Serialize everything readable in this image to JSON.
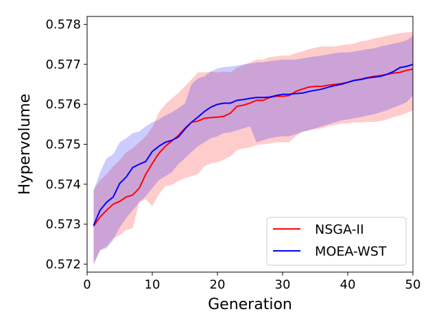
{
  "chart_data": {
    "type": "line",
    "title": "",
    "xlabel": "Generation",
    "ylabel": "Hypervolume",
    "xlim": [
      0,
      50
    ],
    "ylim": [
      0.5718,
      0.5782
    ],
    "xticks": [
      0,
      10,
      20,
      30,
      40,
      50
    ],
    "yticks": [
      0.572,
      0.573,
      0.574,
      0.575,
      0.576,
      0.577,
      0.578
    ],
    "ytick_labels": [
      "0.572",
      "0.573",
      "0.574",
      "0.575",
      "0.576",
      "0.577",
      "0.578"
    ],
    "legend_position": "lower-right",
    "x": [
      1,
      2,
      3,
      4,
      5,
      6,
      7,
      8,
      9,
      10,
      11,
      12,
      13,
      14,
      15,
      16,
      17,
      18,
      19,
      20,
      21,
      22,
      23,
      24,
      25,
      26,
      27,
      28,
      29,
      30,
      31,
      32,
      33,
      34,
      35,
      36,
      37,
      38,
      39,
      40,
      41,
      42,
      43,
      44,
      45,
      46,
      47,
      48,
      49,
      50
    ],
    "series": [
      {
        "name": "NSGA-II",
        "color": "#ff0000",
        "fill_color": "#ff0000",
        "fill_opacity": 0.2,
        "mean": [
          0.57295,
          0.57318,
          0.57335,
          0.5735,
          0.57357,
          0.57368,
          0.57373,
          0.5739,
          0.57425,
          0.57452,
          0.57477,
          0.57495,
          0.57508,
          0.57522,
          0.5754,
          0.57555,
          0.57558,
          0.57565,
          0.57567,
          0.57568,
          0.5757,
          0.57578,
          0.57595,
          0.57598,
          0.57603,
          0.5761,
          0.5761,
          0.57617,
          0.5762,
          0.5762,
          0.57622,
          0.57632,
          0.57638,
          0.57643,
          0.57645,
          0.57645,
          0.57648,
          0.5765,
          0.57652,
          0.57655,
          0.5766,
          0.57663,
          0.57667,
          0.5767,
          0.57672,
          0.57675,
          0.57678,
          0.5768,
          0.57685,
          0.57688
        ],
        "lower": [
          0.572,
          0.57235,
          0.57245,
          0.57265,
          0.57272,
          0.57285,
          0.5729,
          0.57355,
          0.57362,
          0.57345,
          0.57375,
          0.57395,
          0.57398,
          0.57408,
          0.57415,
          0.5742,
          0.57425,
          0.57445,
          0.57452,
          0.57455,
          0.57462,
          0.5747,
          0.57485,
          0.5749,
          0.57492,
          0.57498,
          0.575,
          0.57502,
          0.57505,
          0.57505,
          0.57505,
          0.5752,
          0.5753,
          0.57535,
          0.57538,
          0.5754,
          0.57545,
          0.57548,
          0.57552,
          0.57552,
          0.57555,
          0.57555,
          0.57556,
          0.57556,
          0.57558,
          0.57562,
          0.57568,
          0.57572,
          0.57578,
          0.57585
        ],
        "upper": [
          0.57385,
          0.5741,
          0.57425,
          0.57445,
          0.5746,
          0.5748,
          0.5749,
          0.57505,
          0.5752,
          0.57542,
          0.5758,
          0.576,
          0.57615,
          0.57628,
          0.57645,
          0.57662,
          0.5768,
          0.5768,
          0.57682,
          0.5768,
          0.57682,
          0.5768,
          0.57692,
          0.57698,
          0.57705,
          0.57712,
          0.57712,
          0.57718,
          0.5772,
          0.57722,
          0.57722,
          0.57728,
          0.57732,
          0.57738,
          0.57742,
          0.57745,
          0.57745,
          0.57745,
          0.57748,
          0.5775,
          0.57752,
          0.57758,
          0.5776,
          0.57765,
          0.57768,
          0.57772,
          0.57775,
          0.57778,
          0.5778,
          0.57782
        ]
      },
      {
        "name": "MOEA-WST",
        "color": "#0000ff",
        "fill_color": "#0000ff",
        "fill_opacity": 0.2,
        "mean": [
          0.57297,
          0.57335,
          0.57355,
          0.57368,
          0.57402,
          0.57418,
          0.57442,
          0.5745,
          0.57457,
          0.57482,
          0.57495,
          0.57505,
          0.5751,
          0.57518,
          0.57538,
          0.57555,
          0.57568,
          0.57582,
          0.57593,
          0.576,
          0.57603,
          0.57603,
          0.5761,
          0.57612,
          0.57615,
          0.57617,
          0.57617,
          0.57618,
          0.57622,
          0.57625,
          0.57625,
          0.57627,
          0.57628,
          0.57632,
          0.57635,
          0.57638,
          0.57643,
          0.57647,
          0.5765,
          0.57655,
          0.5766,
          0.57662,
          0.57666,
          0.57668,
          0.5767,
          0.57675,
          0.57682,
          0.57692,
          0.57695,
          0.577
        ],
        "lower": [
          0.572,
          0.57235,
          0.5724,
          0.5726,
          0.57292,
          0.57315,
          0.57335,
          0.57355,
          0.5737,
          0.5739,
          0.5741,
          0.5742,
          0.5743,
          0.5745,
          0.57465,
          0.5748,
          0.57495,
          0.57505,
          0.57515,
          0.5752,
          0.57528,
          0.5753,
          0.57535,
          0.5754,
          0.57545,
          0.57505,
          0.5751,
          0.57515,
          0.57518,
          0.5752,
          0.5752,
          0.57525,
          0.57532,
          0.57535,
          0.5754,
          0.57545,
          0.5755,
          0.57555,
          0.5756,
          0.57562,
          0.57565,
          0.57568,
          0.57572,
          0.57575,
          0.5758,
          0.57585,
          0.57592,
          0.57598,
          0.57605,
          0.57622
        ],
        "upper": [
          0.57385,
          0.5743,
          0.57465,
          0.57475,
          0.57505,
          0.57515,
          0.57528,
          0.57532,
          0.57545,
          0.57555,
          0.57562,
          0.57572,
          0.5758,
          0.5759,
          0.57602,
          0.5765,
          0.57665,
          0.5767,
          0.57682,
          0.5769,
          0.57693,
          0.57695,
          0.57697,
          0.577,
          0.57702,
          0.57705,
          0.57705,
          0.57708,
          0.5771,
          0.57712,
          0.57712,
          0.57712,
          0.57715,
          0.57718,
          0.5772,
          0.57722,
          0.57725,
          0.57728,
          0.5773,
          0.5773,
          0.57732,
          0.57735,
          0.57738,
          0.5774,
          0.57745,
          0.57748,
          0.57752,
          0.57755,
          0.5776,
          0.57772
        ]
      }
    ]
  }
}
